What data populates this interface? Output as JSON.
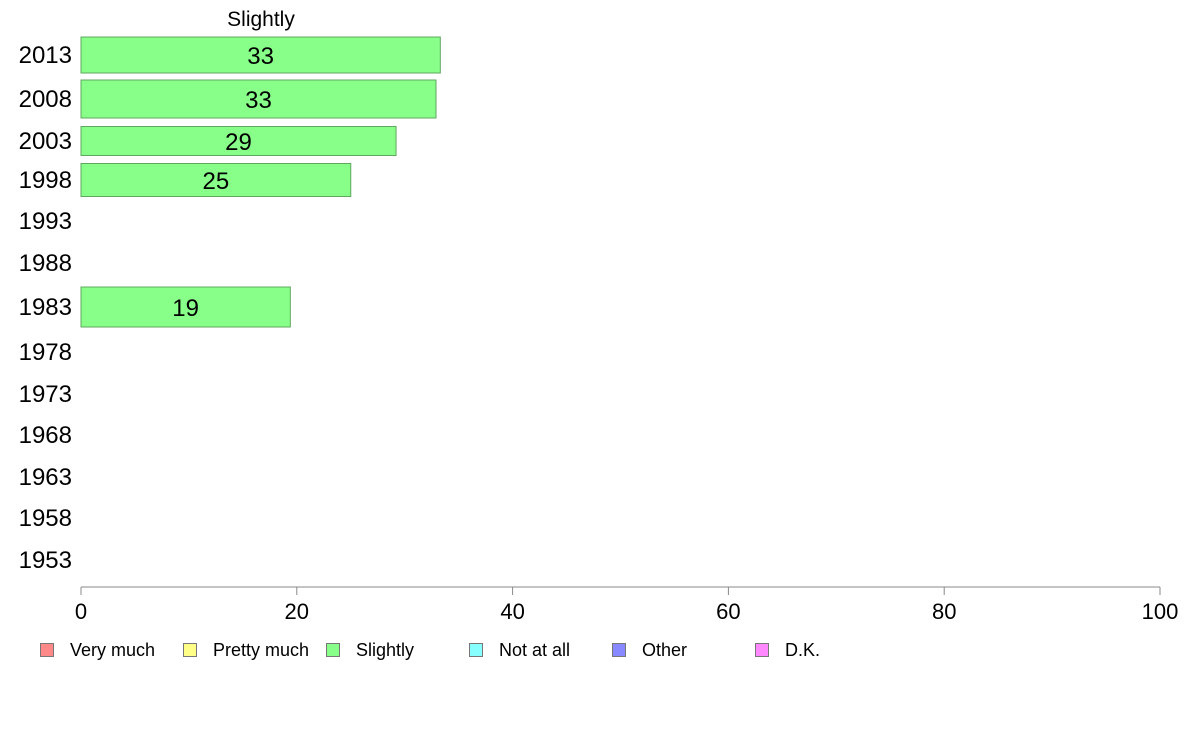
{
  "chart_data": {
    "type": "bar",
    "orientation": "horizontal",
    "title": "Slightly",
    "categories": [
      "2013",
      "2008",
      "2003",
      "1998",
      "1993",
      "1988",
      "1983",
      "1978",
      "1973",
      "1968",
      "1963",
      "1958",
      "1953"
    ],
    "series": [
      {
        "name": "Slightly",
        "color": "#88ff88",
        "values": [
          33.3,
          32.9,
          29.2,
          25.0,
          null,
          null,
          19.4,
          null,
          null,
          null,
          null,
          null,
          null
        ],
        "labels": [
          "33",
          "33",
          "29",
          "25",
          "",
          "",
          "19",
          "",
          "",
          "",
          "",
          "",
          ""
        ]
      }
    ],
    "xlim": [
      0,
      100
    ],
    "xticks": [
      "0",
      "20",
      "40",
      "60",
      "80",
      "100"
    ],
    "grid": false,
    "legend": {
      "placement": "bottom",
      "items": [
        {
          "label": "Very much",
          "color": "#ff8888"
        },
        {
          "label": "Pretty much",
          "color": "#ffff88"
        },
        {
          "label": "Slightly",
          "color": "#88ff88"
        },
        {
          "label": "Not at all",
          "color": "#88ffff"
        },
        {
          "label": "Other",
          "color": "#8888ff"
        },
        {
          "label": "D.K.",
          "color": "#ff88ff"
        }
      ]
    }
  }
}
